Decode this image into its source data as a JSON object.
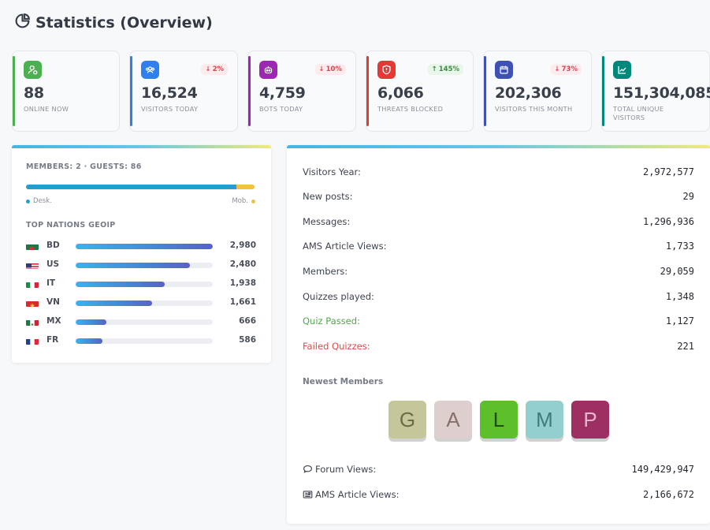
{
  "page_title": "Statistics (Overview)",
  "cards": [
    {
      "number": "88",
      "label": "ONLINE NOW",
      "icon": "user-online-icon",
      "color": "#4caf50",
      "badge": ""
    },
    {
      "number": "16,524",
      "label": "VISITORS TODAY",
      "icon": "visitors-icon",
      "color": "#2f80ed",
      "badge": "2%",
      "trend": "down"
    },
    {
      "number": "4,759",
      "label": "BOTS TODAY",
      "icon": "robot-icon",
      "color": "#9c27b0",
      "badge": "10%",
      "trend": "down"
    },
    {
      "number": "6,066",
      "label": "THREATS BLOCKED",
      "icon": "shield-icon",
      "color": "#e53935",
      "badge": "145%",
      "trend": "up"
    },
    {
      "number": "202,306",
      "label": "VISITORS THIS MONTH",
      "icon": "calendar-icon",
      "color": "#3f51b5",
      "badge": "73%",
      "trend": "down"
    },
    {
      "number": "151,304,085",
      "label": "TOTAL UNIQUE VISITORS",
      "icon": "chart-line-icon",
      "color": "#00897b",
      "badge": ""
    }
  ],
  "online": {
    "summary": "MEMBERS: 2 · GUESTS: 86",
    "desktop_fraction": 0.92,
    "desktop_label": "Desk.",
    "mobile_label": "Mob.",
    "desktop_color": "#1f9fd6",
    "mobile_color": "#f1c13f"
  },
  "nations": {
    "title": "TOP NATIONS GEOIP",
    "items": [
      {
        "code": "BD",
        "value": "2,980",
        "count": 2980
      },
      {
        "code": "US",
        "value": "2,480",
        "count": 2480
      },
      {
        "code": "IT",
        "value": "1,938",
        "count": 1938
      },
      {
        "code": "VN",
        "value": "1,661",
        "count": 1661
      },
      {
        "code": "MX",
        "value": "666",
        "count": 666
      },
      {
        "code": "FR",
        "value": "586",
        "count": 586
      }
    ]
  },
  "stats": [
    {
      "label": "Visitors Year:",
      "value": "2,972,577"
    },
    {
      "label": "New posts:",
      "value": "29"
    },
    {
      "label": "Messages:",
      "value": "1,296,936"
    },
    {
      "label": "AMS Article Views:",
      "value": "1,733"
    },
    {
      "label": "Members:",
      "value": "29,059"
    },
    {
      "label": "Quizzes played:",
      "value": "1,348"
    },
    {
      "label": "Quiz Passed:",
      "value": "1,127"
    },
    {
      "label": "Failed Quizzes:",
      "value": "221"
    }
  ],
  "newest_members": {
    "title": "Newest Members",
    "avatars": [
      {
        "letter": "G",
        "bg": "#c5c79a",
        "fg": "#6b6b45"
      },
      {
        "letter": "A",
        "bg": "#dccfcd",
        "fg": "#8a6e6c"
      },
      {
        "letter": "L",
        "bg": "#5dbf2a",
        "fg": "#1f4d0c"
      },
      {
        "letter": "M",
        "bg": "#94cfd0",
        "fg": "#3f7a7d"
      },
      {
        "letter": "P",
        "bg": "#9e2f63",
        "fg": "#e8b5cf"
      }
    ]
  },
  "views": [
    {
      "label": "Forum Views:",
      "value": "149,429,947",
      "icon": "comments-icon"
    },
    {
      "label": "AMS Article Views:",
      "value": "2,166,672",
      "icon": "newspaper-icon"
    }
  ]
}
